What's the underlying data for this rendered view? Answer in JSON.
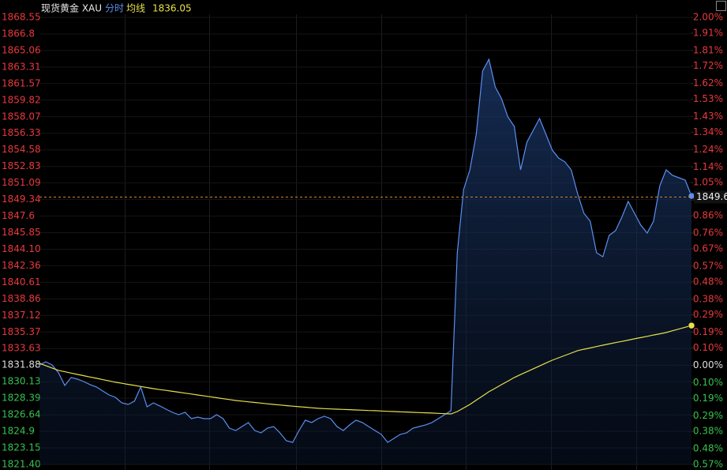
{
  "chart_data": {
    "type": "line",
    "title": "现货黄金 XAU",
    "series": [
      {
        "name": "分时",
        "color": "#5b8ff0",
        "values": [
          1831.9,
          1832.23,
          1831.9,
          1831.07,
          1829.73,
          1830.57,
          1830.4,
          1830.15,
          1829.82,
          1829.57,
          1829.15,
          1828.73,
          1828.48,
          1827.9,
          1827.73,
          1828.07,
          1829.57,
          1827.48,
          1827.9,
          1827.57,
          1827.23,
          1826.9,
          1826.65,
          1826.9,
          1826.23,
          1826.4,
          1826.23,
          1826.23,
          1826.65,
          1826.23,
          1825.23,
          1824.98,
          1825.4,
          1825.82,
          1824.98,
          1824.73,
          1825.23,
          1825.4,
          1824.73,
          1823.9,
          1823.73,
          1824.98,
          1826.07,
          1825.82,
          1826.23,
          1826.48,
          1826.23,
          1825.4,
          1824.98,
          1825.57,
          1826.07,
          1825.82,
          1825.4,
          1824.98,
          1824.57,
          1823.73,
          1824.15,
          1824.57,
          1824.73,
          1825.23,
          1825.4,
          1825.57,
          1825.82,
          1826.23,
          1826.65,
          1827.07,
          1843.73,
          1850.39,
          1852.47,
          1856.22,
          1862.89,
          1864.13,
          1861.22,
          1859.97,
          1858.05,
          1857.05,
          1852.47,
          1855.39,
          1856.64,
          1857.89,
          1856.22,
          1854.56,
          1853.72,
          1853.31,
          1852.47,
          1849.97,
          1847.89,
          1847.06,
          1843.73,
          1843.31,
          1845.56,
          1846.06,
          1847.48,
          1849.14,
          1847.89,
          1846.64,
          1845.81,
          1847.06,
          1850.81,
          1852.47,
          1851.89,
          1851.64,
          1851.39,
          1849.72
        ]
      },
      {
        "name": "均线",
        "color": "#e6e04a",
        "values": [
          1832.07,
          1831.82,
          1831.57,
          1831.32,
          1831.18,
          1831.04,
          1830.9,
          1830.76,
          1830.62,
          1830.49,
          1830.35,
          1830.21,
          1830.07,
          1829.96,
          1829.85,
          1829.74,
          1829.62,
          1829.51,
          1829.4,
          1829.3,
          1829.21,
          1829.11,
          1829.02,
          1828.92,
          1828.83,
          1828.73,
          1828.63,
          1828.54,
          1828.44,
          1828.34,
          1828.25,
          1828.15,
          1828.08,
          1828.01,
          1827.94,
          1827.87,
          1827.8,
          1827.73,
          1827.67,
          1827.61,
          1827.55,
          1827.49,
          1827.44,
          1827.38,
          1827.32,
          1827.29,
          1827.26,
          1827.23,
          1827.21,
          1827.18,
          1827.15,
          1827.12,
          1827.09,
          1827.07,
          1827.04,
          1827.01,
          1826.98,
          1826.95,
          1826.93,
          1826.9,
          1826.87,
          1826.85,
          1826.82,
          1826.79,
          1826.76,
          1826.73,
          1826.98,
          1827.36,
          1827.73,
          1828.18,
          1828.62,
          1829.07,
          1829.44,
          1829.82,
          1830.19,
          1830.57,
          1830.88,
          1831.18,
          1831.49,
          1831.79,
          1832.1,
          1832.4,
          1832.65,
          1832.9,
          1833.15,
          1833.4,
          1833.55,
          1833.69,
          1833.84,
          1833.98,
          1834.11,
          1834.25,
          1834.38,
          1834.51,
          1834.65,
          1834.78,
          1834.91,
          1835.05,
          1835.18,
          1835.31,
          1835.5,
          1835.68,
          1835.87,
          1836.05
        ]
      }
    ],
    "last_price": 1849.6,
    "ylim": [
      1821.4,
      1868.55
    ],
    "yticks": [
      1868.55,
      1866.8,
      1865.06,
      1863.31,
      1861.57,
      1859.82,
      1858.07,
      1856.33,
      1854.58,
      1852.83,
      1851.09,
      1849.34,
      1847.6,
      1845.85,
      {
        "value": 1844.1,
        "label": "1844.10"
      },
      1842.36,
      1840.61,
      1838.86,
      1837.12,
      1835.37,
      1833.63,
      1831.88,
      1830.13,
      1828.39,
      1826.64,
      1824.9,
      1823.15,
      {
        "value": 1821.4,
        "label": "1821.40"
      }
    ],
    "y2lim": [
      -0.57,
      2.0
    ],
    "y2ticks": [
      {
        "value": 2.0,
        "label": "2.00%"
      },
      {
        "value": 1.91,
        "label": "1.91%"
      },
      {
        "value": 1.81,
        "label": "1.81%"
      },
      {
        "value": 1.72,
        "label": "1.72%"
      },
      {
        "value": 1.62,
        "label": "1.62%"
      },
      {
        "value": 1.53,
        "label": "1.53%"
      },
      {
        "value": 1.43,
        "label": "1.43%"
      },
      {
        "value": 1.34,
        "label": "1.34%"
      },
      {
        "value": 1.24,
        "label": "1.24%"
      },
      {
        "value": 1.14,
        "label": "1.14%"
      },
      {
        "value": 1.05,
        "label": "1.05%"
      },
      {
        "value": 0.95,
        "label": "0.95%"
      },
      {
        "value": 0.86,
        "label": "0.86%"
      },
      {
        "value": 0.76,
        "label": "0.76%"
      },
      {
        "value": 0.67,
        "label": "0.67%"
      },
      {
        "value": 0.57,
        "label": "0.57%"
      },
      {
        "value": 0.48,
        "label": "0.48%"
      },
      {
        "value": 0.38,
        "label": "0.38%"
      },
      {
        "value": 0.29,
        "label": "0.29%"
      },
      {
        "value": 0.19,
        "label": "0.19%"
      },
      {
        "value": 0.1,
        "label": "0.10%"
      },
      {
        "value": 0.0,
        "label": "0.00%"
      },
      {
        "value": -0.1,
        "label": "0.10%"
      },
      {
        "value": -0.19,
        "label": "0.19%"
      },
      {
        "value": -0.29,
        "label": "0.29%"
      },
      {
        "value": -0.38,
        "label": "0.38%"
      },
      {
        "value": -0.48,
        "label": "0.48%"
      },
      {
        "value": -0.57,
        "label": "0.57%"
      }
    ],
    "grid": true,
    "up_color": "#e8393c",
    "down_color": "#36c24f",
    "flat_color": "#dddddd"
  }
}
